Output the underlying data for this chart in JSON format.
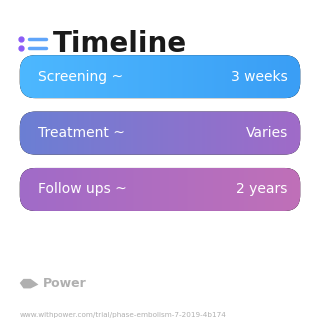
{
  "title": "Timeline",
  "title_fontsize": 20,
  "title_color": "#1a1a1a",
  "icon_color_dot": "#8b5cf6",
  "icon_color_line": "#60a5fa",
  "background_color": "#ffffff",
  "rows": [
    {
      "label": "Screening ~",
      "value": "3 weeks",
      "color_left": "#4db8ff",
      "color_right": "#3a9ef5"
    },
    {
      "label": "Treatment ~",
      "value": "Varies",
      "color_left": "#6b7fd4",
      "color_right": "#a06bc8"
    },
    {
      "label": "Follow ups ~",
      "value": "2 years",
      "color_left": "#a06bc8",
      "color_right": "#c070b8"
    }
  ],
  "text_color": "#ffffff",
  "label_fontsize": 10,
  "value_fontsize": 10,
  "watermark_text": "Power",
  "watermark_color": "#b0b0b0",
  "url_text": "www.withpower.com/trial/phase-embolism-7-2019-4b174",
  "url_fontsize": 5.2
}
